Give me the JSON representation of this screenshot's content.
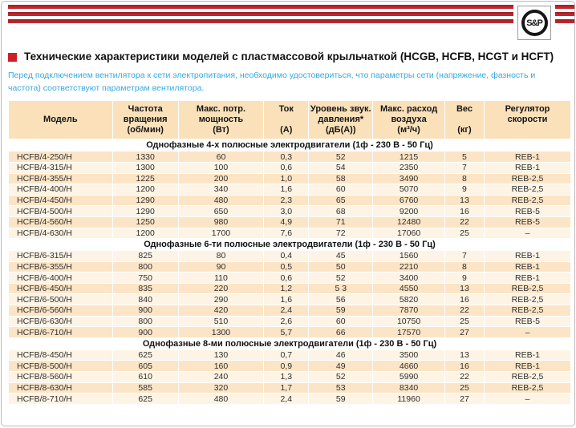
{
  "logo": {
    "text": "S&P"
  },
  "colors": {
    "brand_red": "#c4262d",
    "notice_blue": "#36a9e1",
    "row_peach": "#fbe5c6",
    "row_cream": "#fdf4e5",
    "header_bg": "#fbe1ba",
    "title_bullet": "#cc2127"
  },
  "title": {
    "text": "Технические характеристики моделей с пластмассовой крыльчаткой (HCGB, HCFB, HCGT и HCFT)"
  },
  "notice": {
    "text": "Перед подключением вентилятора к сети электропитания, необходимо удостовериться, что параметры сети (напряжение, фазность и частота) соответствуют параметрам вентилятора."
  },
  "table": {
    "columns": [
      {
        "name": "model",
        "lines": [
          "",
          "Модель",
          ""
        ]
      },
      {
        "name": "rotation-speed",
        "lines": [
          "Частота",
          "вращения",
          "(об/мин)"
        ]
      },
      {
        "name": "max-power",
        "lines": [
          "Макс. потр.",
          "мощность",
          "(Вт)"
        ]
      },
      {
        "name": "current",
        "lines": [
          "Ток",
          "",
          "(А)"
        ]
      },
      {
        "name": "sound-level",
        "lines": [
          "Уровень звук.",
          "давления*",
          "(дБ(А))"
        ]
      },
      {
        "name": "max-airflow",
        "lines": [
          "Макс. расход",
          "воздуха",
          "(м³/ч)"
        ]
      },
      {
        "name": "weight",
        "lines": [
          "Вес",
          "",
          "(кг)"
        ]
      },
      {
        "name": "speed-controller",
        "lines": [
          "Регулятор",
          "скорости",
          ""
        ]
      }
    ],
    "sections": [
      {
        "header": "Однофазные 4-х полюсные электродвигатели (1ф - 230 В - 50 Гц)",
        "rows": [
          [
            "HCFB/4-250/H",
            "1330",
            "60",
            "0,3",
            "52",
            "1215",
            "5",
            "REB-1"
          ],
          [
            "HCFB/4-315/H",
            "1300",
            "100",
            "0,6",
            "54",
            "2350",
            "7",
            "REB-1"
          ],
          [
            "HCFB/4-355/H",
            "1225",
            "200",
            "1,0",
            "58",
            "3490",
            "8",
            "REB-2,5"
          ],
          [
            "HCFB/4-400/H",
            "1200",
            "340",
            "1,6",
            "60",
            "5070",
            "9",
            "REB-2,5"
          ],
          [
            "HCFB/4-450/H",
            "1290",
            "480",
            "2,3",
            "65",
            "6760",
            "13",
            "REB-2,5"
          ],
          [
            "HCFB/4-500/H",
            "1290",
            "650",
            "3,0",
            "68",
            "9200",
            "16",
            "REB-5"
          ],
          [
            "HCFB/4-560/H",
            "1250",
            "980",
            "4,9",
            "71",
            "12480",
            "22",
            "REB-5"
          ],
          [
            "HCFB/4-630/H",
            "1200",
            "1700",
            "7,6",
            "72",
            "17060",
            "25",
            "–"
          ]
        ]
      },
      {
        "header": "Однофазные 6-ти полюсные электродвигатели (1ф - 230 В - 50 Гц)",
        "rows": [
          [
            "HCFB/6-315/H",
            "825",
            "80",
            "0,4",
            "45",
            "1560",
            "7",
            "REB-1"
          ],
          [
            "HCFB/6-355/H",
            "800",
            "90",
            "0,5",
            "50",
            "2210",
            "8",
            "REB-1"
          ],
          [
            "HCFB/6-400/H",
            "750",
            "110",
            "0,6",
            "52",
            "3400",
            "9",
            "REB-1"
          ],
          [
            "HCFB/6-450/H",
            "835",
            "220",
            "1,2",
            "5 3",
            "4550",
            "13",
            "REB-2,5"
          ],
          [
            "HCFB/6-500/H",
            "840",
            "290",
            "1,6",
            "56",
            "5820",
            "16",
            "REB-2,5"
          ],
          [
            "HCFB/6-560/H",
            "900",
            "420",
            "2,4",
            "59",
            "7870",
            "22",
            "REB-2,5"
          ],
          [
            "HCFB/6-630/H",
            "800",
            "510",
            "2,6",
            "60",
            "10750",
            "25",
            "REB-5"
          ],
          [
            "HCFB/6-710/H",
            "900",
            "1300",
            "5,7",
            "66",
            "17570",
            "27",
            "–"
          ]
        ]
      },
      {
        "header": "Однофазные 8-ми полюсные электродвигатели (1ф - 230 В - 50 Гц)",
        "rows": [
          [
            "HCFB/8-450/H",
            "625",
            "130",
            "0,7",
            "46",
            "3500",
            "13",
            "REB-1"
          ],
          [
            "HCFB/8-500/H",
            "605",
            "160",
            "0,9",
            "49",
            "4660",
            "16",
            "REB-1"
          ],
          [
            "HCFB/8-560/H",
            "610",
            "240",
            "1,3",
            "52",
            "5990",
            "22",
            "REB-2,5"
          ],
          [
            "HCFB/8-630/H",
            "585",
            "320",
            "1,7",
            "53",
            "8340",
            "25",
            "REB-2,5"
          ],
          [
            "HCFB/8-710/H",
            "625",
            "480",
            "2,4",
            "59",
            "11960",
            "27",
            "–"
          ]
        ]
      }
    ]
  }
}
